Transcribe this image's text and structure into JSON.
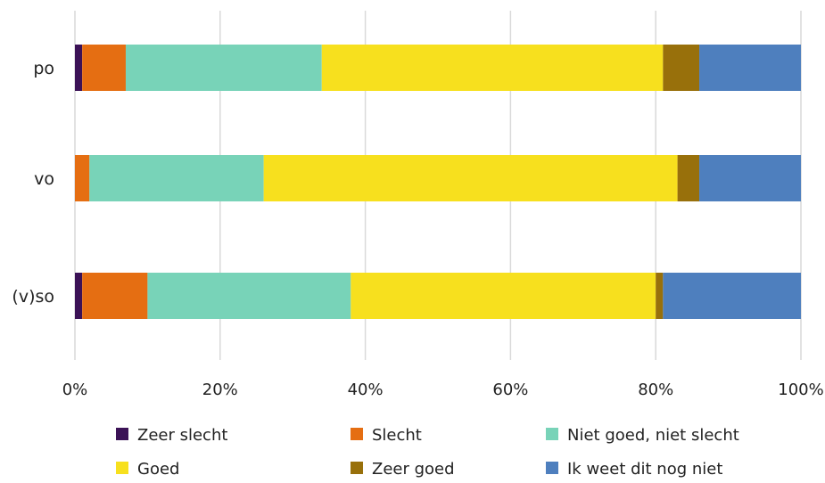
{
  "chart_data": {
    "type": "bar",
    "orientation": "horizontal",
    "stacked": true,
    "categories": [
      "po",
      "vo",
      "(v)so"
    ],
    "series": [
      {
        "name": "Zeer slecht",
        "color": "#3b1256",
        "values": [
          1,
          0,
          1
        ]
      },
      {
        "name": "Slecht",
        "color": "#e56e12",
        "values": [
          6,
          2,
          9
        ]
      },
      {
        "name": "Niet goed, niet slecht",
        "color": "#78d3b8",
        "values": [
          27,
          24,
          28
        ]
      },
      {
        "name": "Goed",
        "color": "#f7e01e",
        "values": [
          47,
          57,
          42
        ]
      },
      {
        "name": "Zeer goed",
        "color": "#98700b",
        "values": [
          5,
          3,
          1
        ]
      },
      {
        "name": "Ik weet dit nog niet",
        "color": "#4e7fbe",
        "values": [
          14,
          14,
          19
        ]
      }
    ],
    "xlim": [
      0,
      100
    ],
    "x_ticks": [
      "0%",
      "20%",
      "40%",
      "60%",
      "80%",
      "100%"
    ],
    "grid": true,
    "legend_position": "bottom",
    "title": "",
    "xlabel": "",
    "ylabel": ""
  }
}
